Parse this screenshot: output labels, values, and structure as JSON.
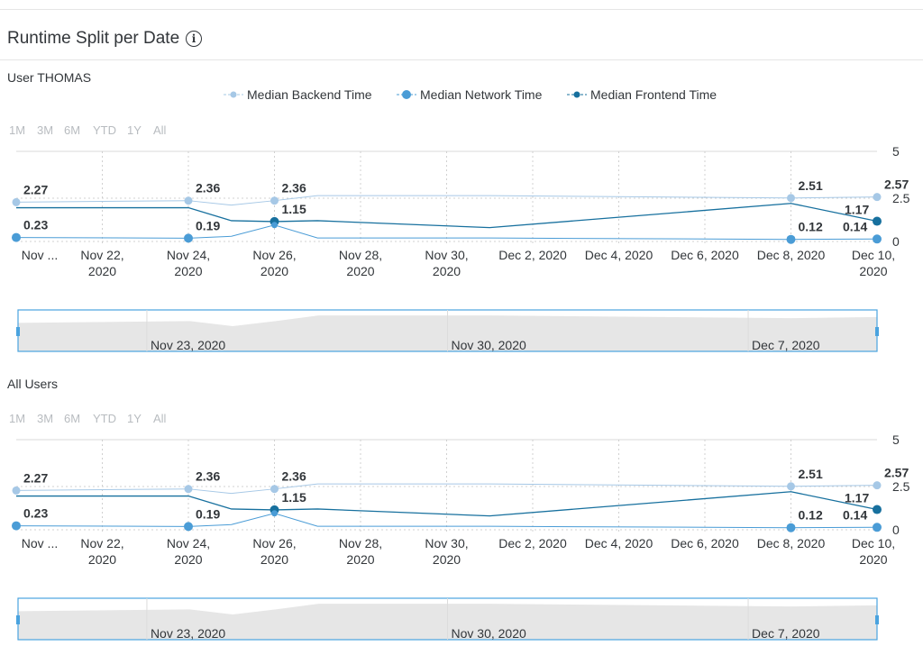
{
  "header": {
    "title": "Runtime Split per Date"
  },
  "range_buttons": [
    "1M",
    "3M",
    "6M",
    "YTD",
    "1Y",
    "All"
  ],
  "legend": [
    {
      "name": "Median Backend Time",
      "color": "#a6c8e6"
    },
    {
      "name": "Median Network Time",
      "color": "#4a9cd6"
    },
    {
      "name": "Median Frontend Time",
      "color": "#17709e"
    }
  ],
  "y_ticks": [
    "5",
    "2.5",
    "0"
  ],
  "x_ticks": [
    [
      "Nov ...",
      ""
    ],
    [
      "Nov 22,",
      "2020"
    ],
    [
      "Nov 24,",
      "2020"
    ],
    [
      "Nov 26,",
      "2020"
    ],
    [
      "Nov 28,",
      "2020"
    ],
    [
      "Nov 30,",
      "2020"
    ],
    [
      "Dec 2, 2020",
      ""
    ],
    [
      "Dec 4, 2020",
      ""
    ],
    [
      "Dec 6, 2020",
      ""
    ],
    [
      "Dec 8, 2020",
      ""
    ],
    [
      "Dec 10,",
      "2020"
    ]
  ],
  "navigator_labels": [
    "Nov 23, 2020",
    "Nov 30, 2020",
    "Dec 7, 2020"
  ],
  "chart_data": [
    {
      "type": "line",
      "title": "User THOMAS",
      "x": [
        "2020-11-20",
        "2020-11-24",
        "2020-11-25",
        "2020-11-26",
        "2020-11-27",
        "2020-12-01",
        "2020-12-08",
        "2020-12-10"
      ],
      "ylim": [
        0,
        5
      ],
      "series": [
        {
          "name": "Median Backend Time",
          "values": [
            2.27,
            2.36,
            2.1,
            2.36,
            2.65,
            2.65,
            2.51,
            2.57
          ]
        },
        {
          "name": "Median Network Time",
          "values": [
            0.23,
            0.19,
            0.3,
            0.95,
            0.2,
            0.2,
            0.12,
            0.14
          ]
        },
        {
          "name": "Median Frontend Time",
          "values": [
            1.95,
            1.95,
            1.2,
            1.15,
            1.2,
            0.8,
            2.2,
            1.17
          ]
        }
      ],
      "data_labels": [
        {
          "series": 0,
          "index": 0,
          "text": "2.27"
        },
        {
          "series": 0,
          "index": 1,
          "text": "2.36"
        },
        {
          "series": 0,
          "index": 3,
          "text": "2.36"
        },
        {
          "series": 0,
          "index": 6,
          "text": "2.51"
        },
        {
          "series": 0,
          "index": 7,
          "text": "2.57"
        },
        {
          "series": 1,
          "index": 0,
          "text": "0.23"
        },
        {
          "series": 1,
          "index": 1,
          "text": "0.19"
        },
        {
          "series": 1,
          "index": 6,
          "text": "0.12"
        },
        {
          "series": 1,
          "index": 7,
          "text": "0.14"
        },
        {
          "series": 2,
          "index": 3,
          "text": "1.15"
        },
        {
          "series": 2,
          "index": 7,
          "text": "1.17"
        }
      ]
    },
    {
      "type": "line",
      "title": "All Users",
      "x": [
        "2020-11-20",
        "2020-11-24",
        "2020-11-25",
        "2020-11-26",
        "2020-11-27",
        "2020-12-01",
        "2020-12-08",
        "2020-12-10"
      ],
      "ylim": [
        0,
        5
      ],
      "series": [
        {
          "name": "Median Backend Time",
          "values": [
            2.27,
            2.36,
            2.1,
            2.36,
            2.65,
            2.65,
            2.51,
            2.57
          ]
        },
        {
          "name": "Median Network Time",
          "values": [
            0.23,
            0.19,
            0.3,
            0.95,
            0.2,
            0.2,
            0.12,
            0.14
          ]
        },
        {
          "name": "Median Frontend Time",
          "values": [
            1.95,
            1.95,
            1.2,
            1.15,
            1.2,
            0.8,
            2.2,
            1.17
          ]
        }
      ],
      "data_labels": [
        {
          "series": 0,
          "index": 0,
          "text": "2.27"
        },
        {
          "series": 0,
          "index": 1,
          "text": "2.36"
        },
        {
          "series": 0,
          "index": 3,
          "text": "2.36"
        },
        {
          "series": 0,
          "index": 6,
          "text": "2.51"
        },
        {
          "series": 0,
          "index": 7,
          "text": "2.57"
        },
        {
          "series": 1,
          "index": 0,
          "text": "0.23"
        },
        {
          "series": 1,
          "index": 1,
          "text": "0.19"
        },
        {
          "series": 1,
          "index": 6,
          "text": "0.12"
        },
        {
          "series": 1,
          "index": 7,
          "text": "0.14"
        },
        {
          "series": 2,
          "index": 3,
          "text": "1.15"
        },
        {
          "series": 2,
          "index": 7,
          "text": "1.17"
        }
      ]
    }
  ]
}
